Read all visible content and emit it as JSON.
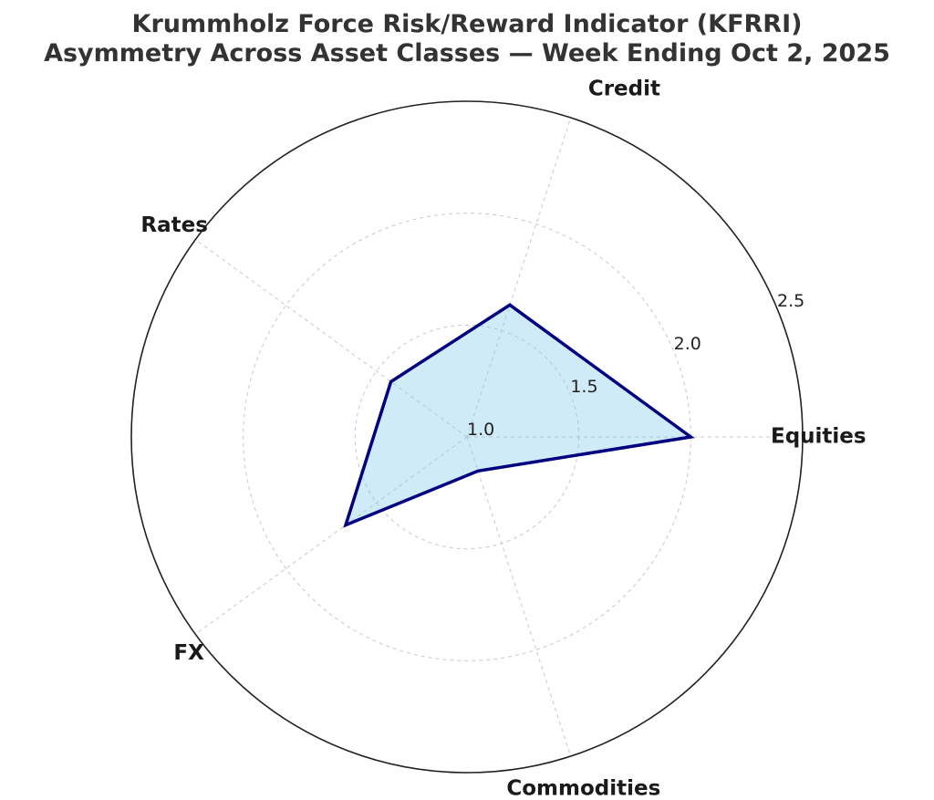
{
  "title_lines": [
    "Krummholz Force Risk/Reward Indicator (KFRRI)",
    "Asymmetry Across Asset Classes — Week Ending Oct 2, 2025"
  ],
  "chart_data": {
    "type": "radar",
    "title": "Krummholz Force Risk/Reward Indicator (KFRRI) Asymmetry Across Asset Classes — Week Ending Oct 2, 2025",
    "categories": [
      "Equities",
      "Credit",
      "Rates",
      "FX",
      "Commodities"
    ],
    "series": [
      {
        "values": [
          2.0,
          1.62,
          1.42,
          1.67,
          1.16
        ],
        "line_color": "#000080",
        "fill_color": "#87CEEB"
      }
    ],
    "r_range": [
      1.0,
      2.5
    ],
    "r_ticks": [
      1.0,
      1.5,
      2.0,
      2.5
    ],
    "r_tick_labels": [
      "1.0",
      "1.5",
      "2.0",
      "2.5"
    ],
    "grid": true,
    "legend": "none"
  }
}
